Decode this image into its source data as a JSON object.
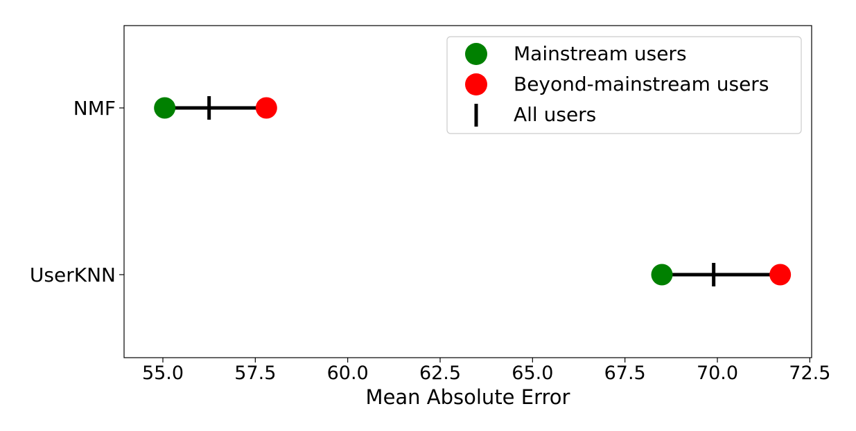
{
  "chart_data": {
    "type": "scatter",
    "title": "",
    "xlabel": "Mean Absolute Error",
    "ylabel": "",
    "xlim": [
      53.95,
      72.55
    ],
    "xticks": [
      55.0,
      57.5,
      60.0,
      62.5,
      65.0,
      67.5,
      70.0,
      72.5
    ],
    "xtick_labels": [
      "55.0",
      "57.5",
      "60.0",
      "62.5",
      "65.0",
      "67.5",
      "70.0",
      "72.5"
    ],
    "categories": [
      "NMF",
      "UserKNN"
    ],
    "series": [
      {
        "name": "Mainstream users",
        "color": "#008000",
        "marker": "circle",
        "values": [
          55.05,
          68.5
        ]
      },
      {
        "name": "Beyond-mainstream users",
        "color": "#ff0000",
        "marker": "circle",
        "values": [
          57.8,
          71.7
        ]
      },
      {
        "name": "All users",
        "color": "#000000",
        "marker": "vline",
        "values": [
          56.25,
          69.9
        ]
      }
    ],
    "grid": false,
    "legend_position": "top-right"
  }
}
